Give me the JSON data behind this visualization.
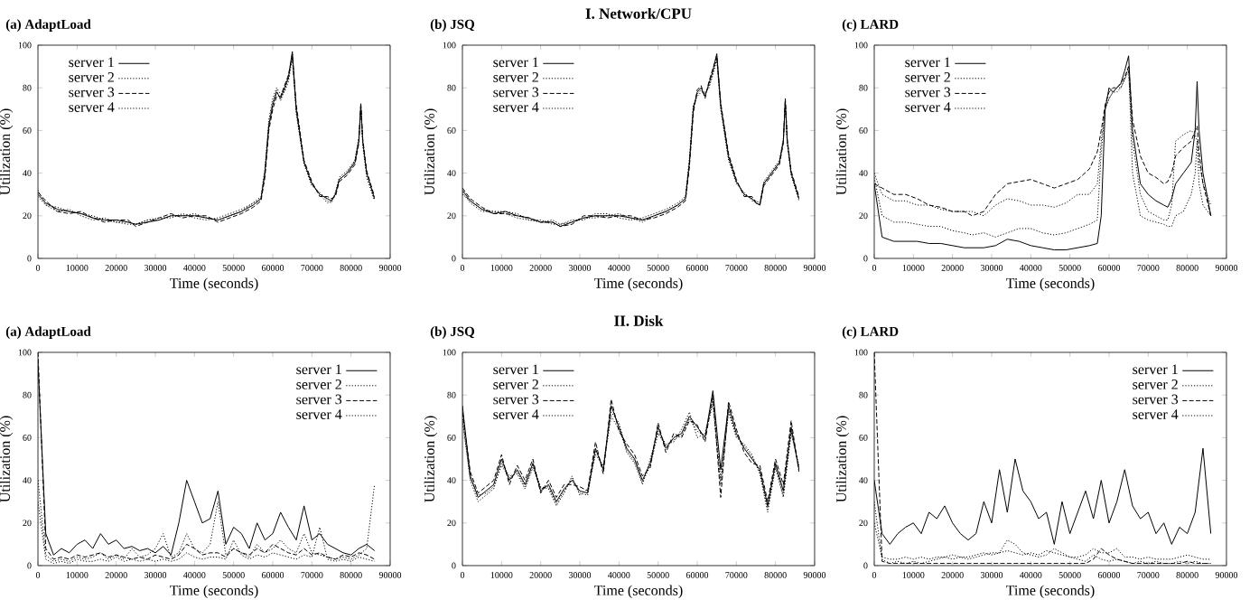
{
  "chart_data": [
    {
      "type": "line",
      "title": "(a) AdaptLoad",
      "xlabel": "Time (seconds)",
      "ylabel": "Utilization (%)",
      "xlim": [
        0,
        90000
      ],
      "ylim": [
        0,
        100
      ],
      "xticks": [
        0,
        10000,
        20000,
        30000,
        40000,
        50000,
        60000,
        70000,
        80000,
        90000
      ],
      "yticks": [
        0,
        20,
        40,
        60,
        80,
        100
      ],
      "legend": "top left",
      "marker": "none",
      "x": [
        0,
        2000,
        5000,
        8000,
        11000,
        14000,
        17000,
        20000,
        23000,
        25000,
        28000,
        31000,
        34000,
        37000,
        40000,
        43000,
        46000,
        49000,
        52000,
        55000,
        57000,
        58000,
        59000,
        60000,
        61000,
        62000,
        63000,
        64000,
        65000,
        66000,
        68000,
        70000,
        72000,
        74000,
        75000,
        76000,
        77000,
        79000,
        81000,
        82000,
        82500,
        83000,
        84000,
        86000
      ],
      "series": [
        {
          "name": "server 1",
          "color": "#000000",
          "line_style": "solid",
          "values": [
            30,
            26,
            23,
            22,
            21,
            19,
            18,
            18,
            17,
            16,
            17,
            18,
            20,
            20,
            20,
            19,
            18,
            20,
            22,
            25,
            28,
            40,
            62,
            72,
            78,
            75,
            80,
            85,
            97,
            70,
            45,
            35,
            30,
            28,
            27,
            30,
            37,
            40,
            45,
            55,
            72,
            55,
            40,
            28
          ]
        },
        {
          "name": "server 2",
          "color": "#000000",
          "line_style": "dotted",
          "values": [
            29,
            25,
            22,
            23,
            20,
            18,
            19,
            17,
            16,
            16,
            18,
            19,
            19,
            21,
            19,
            18,
            19,
            21,
            23,
            26,
            29,
            42,
            65,
            75,
            80,
            77,
            78,
            83,
            94,
            68,
            44,
            34,
            31,
            27,
            26,
            31,
            38,
            41,
            46,
            57,
            70,
            53,
            38,
            27
          ]
        },
        {
          "name": "server 3",
          "color": "#000000",
          "line_style": "dashed",
          "values": [
            31,
            27,
            22,
            21,
            22,
            19,
            17,
            18,
            18,
            15,
            17,
            19,
            21,
            19,
            20,
            20,
            17,
            19,
            21,
            24,
            27,
            38,
            60,
            70,
            76,
            76,
            81,
            86,
            95,
            72,
            46,
            36,
            29,
            29,
            28,
            29,
            36,
            39,
            44,
            54,
            73,
            56,
            41,
            29
          ]
        },
        {
          "name": "server 4",
          "color": "#000000",
          "line_style": "dotted",
          "values": [
            32,
            25,
            24,
            22,
            21,
            20,
            18,
            17,
            17,
            16,
            18,
            18,
            20,
            20,
            21,
            19,
            18,
            20,
            22,
            26,
            28,
            41,
            63,
            73,
            79,
            74,
            79,
            84,
            96,
            69,
            45,
            35,
            30,
            26,
            27,
            30,
            37,
            40,
            46,
            56,
            71,
            54,
            40,
            28
          ]
        }
      ]
    },
    {
      "type": "line",
      "title": "(b) JSQ",
      "annotations": [
        "I. Network/CPU"
      ],
      "xlabel": "Time (seconds)",
      "ylabel": "Utilization (%)",
      "xlim": [
        0,
        90000
      ],
      "ylim": [
        0,
        100
      ],
      "xticks": [
        0,
        10000,
        20000,
        30000,
        40000,
        50000,
        60000,
        70000,
        80000,
        90000
      ],
      "yticks": [
        0,
        20,
        40,
        60,
        80,
        100
      ],
      "legend": "top left",
      "marker": "none",
      "x": [
        0,
        2000,
        5000,
        8000,
        11000,
        14000,
        17000,
        20000,
        23000,
        25000,
        28000,
        31000,
        34000,
        37000,
        40000,
        43000,
        46000,
        49000,
        52000,
        55000,
        57000,
        58000,
        59000,
        60000,
        61000,
        62000,
        63000,
        64000,
        65000,
        66000,
        68000,
        70000,
        72000,
        74000,
        75000,
        76000,
        77000,
        79000,
        81000,
        82000,
        82500,
        83000,
        84000,
        86000
      ],
      "series": [
        {
          "name": "server 1",
          "color": "#000000",
          "line_style": "solid",
          "values": [
            32,
            27,
            23,
            21,
            22,
            20,
            19,
            17,
            17,
            15,
            17,
            19,
            20,
            20,
            20,
            19,
            18,
            20,
            22,
            25,
            28,
            45,
            70,
            78,
            80,
            76,
            82,
            88,
            96,
            72,
            48,
            36,
            30,
            28,
            26,
            25,
            35,
            40,
            45,
            55,
            74,
            55,
            40,
            28
          ]
        },
        {
          "name": "server 2",
          "color": "#000000",
          "line_style": "dotted",
          "values": [
            31,
            26,
            22,
            22,
            21,
            19,
            18,
            18,
            16,
            16,
            18,
            18,
            21,
            21,
            19,
            18,
            19,
            21,
            23,
            26,
            29,
            47,
            72,
            76,
            78,
            78,
            80,
            86,
            94,
            70,
            46,
            35,
            31,
            27,
            27,
            26,
            36,
            41,
            46,
            56,
            72,
            54,
            39,
            27
          ]
        },
        {
          "name": "server 3",
          "color": "#000000",
          "line_style": "dashed",
          "values": [
            33,
            28,
            24,
            21,
            21,
            20,
            19,
            17,
            17,
            15,
            16,
            20,
            20,
            19,
            20,
            20,
            18,
            19,
            21,
            24,
            27,
            43,
            68,
            79,
            81,
            75,
            83,
            89,
            95,
            73,
            49,
            37,
            29,
            29,
            26,
            25,
            34,
            39,
            44,
            54,
            75,
            56,
            41,
            29
          ]
        },
        {
          "name": "server 4",
          "color": "#000000",
          "line_style": "dotted",
          "values": [
            30,
            27,
            23,
            22,
            22,
            21,
            18,
            17,
            18,
            16,
            17,
            19,
            19,
            20,
            21,
            19,
            17,
            20,
            22,
            25,
            28,
            44,
            71,
            77,
            79,
            77,
            81,
            87,
            93,
            71,
            47,
            36,
            30,
            28,
            27,
            25,
            35,
            40,
            45,
            55,
            73,
            55,
            40,
            28
          ]
        }
      ]
    },
    {
      "type": "line",
      "title": "(c) LARD",
      "xlabel": "Time (seconds)",
      "ylabel": "Utilization (%)",
      "xlim": [
        0,
        90000
      ],
      "ylim": [
        0,
        100
      ],
      "xticks": [
        0,
        10000,
        20000,
        30000,
        40000,
        50000,
        60000,
        70000,
        80000,
        90000
      ],
      "yticks": [
        0,
        20,
        40,
        60,
        80,
        100
      ],
      "legend": "top left",
      "marker": "none",
      "x": [
        0,
        2000,
        5000,
        8000,
        11000,
        14000,
        17000,
        20000,
        23000,
        25000,
        28000,
        31000,
        34000,
        37000,
        40000,
        43000,
        46000,
        49000,
        52000,
        55000,
        57000,
        58000,
        59000,
        60000,
        61000,
        62000,
        63000,
        64000,
        65000,
        66000,
        68000,
        70000,
        72000,
        74000,
        75000,
        76000,
        77000,
        79000,
        81000,
        82000,
        82500,
        83000,
        84000,
        86000
      ],
      "series": [
        {
          "name": "server 1",
          "color": "#000000",
          "line_style": "solid",
          "values": [
            35,
            10,
            8,
            8,
            8,
            7,
            7,
            6,
            5,
            5,
            5,
            6,
            9,
            8,
            6,
            5,
            4,
            4,
            5,
            6,
            7,
            20,
            70,
            80,
            78,
            80,
            82,
            88,
            95,
            60,
            35,
            30,
            27,
            25,
            24,
            28,
            35,
            40,
            45,
            60,
            83,
            60,
            40,
            20
          ]
        },
        {
          "name": "server 2",
          "color": "#000000",
          "line_style": "dotted",
          "values": [
            40,
            30,
            27,
            27,
            25,
            25,
            23,
            22,
            22,
            22,
            20,
            25,
            28,
            27,
            25,
            25,
            24,
            26,
            30,
            30,
            35,
            55,
            70,
            75,
            78,
            78,
            80,
            84,
            88,
            55,
            30,
            22,
            20,
            18,
            18,
            25,
            55,
            58,
            60,
            58,
            55,
            45,
            35,
            25
          ]
        },
        {
          "name": "server 3",
          "color": "#000000",
          "line_style": "dashed",
          "values": [
            35,
            33,
            30,
            30,
            28,
            25,
            24,
            22,
            22,
            20,
            22,
            30,
            35,
            36,
            37,
            35,
            33,
            35,
            37,
            42,
            50,
            60,
            72,
            78,
            80,
            80,
            82,
            85,
            90,
            65,
            48,
            40,
            38,
            35,
            36,
            40,
            48,
            52,
            55,
            60,
            62,
            50,
            35,
            20
          ]
        },
        {
          "name": "server 4",
          "color": "#000000",
          "line_style": "dotted",
          "values": [
            38,
            20,
            17,
            17,
            16,
            15,
            15,
            13,
            12,
            11,
            12,
            10,
            12,
            14,
            14,
            12,
            11,
            12,
            14,
            16,
            18,
            50,
            70,
            75,
            78,
            80,
            80,
            84,
            90,
            40,
            20,
            18,
            17,
            16,
            15,
            15,
            20,
            22,
            30,
            40,
            55,
            35,
            25,
            20
          ]
        }
      ]
    },
    {
      "type": "line",
      "title": "(a) AdaptLoad",
      "xlabel": "Time (seconds)",
      "ylabel": "Utilization (%)",
      "xlim": [
        0,
        90000
      ],
      "ylim": [
        0,
        100
      ],
      "xticks": [
        0,
        10000,
        20000,
        30000,
        40000,
        50000,
        60000,
        70000,
        80000,
        90000
      ],
      "yticks": [
        0,
        20,
        40,
        60,
        80,
        100
      ],
      "legend": "top right",
      "marker": "none",
      "x": [
        0,
        2000,
        4000,
        6000,
        8000,
        10000,
        12000,
        14000,
        16000,
        18000,
        20000,
        22000,
        24000,
        26000,
        28000,
        30000,
        32000,
        34000,
        36000,
        38000,
        40000,
        42000,
        44000,
        46000,
        48000,
        50000,
        52000,
        54000,
        56000,
        58000,
        60000,
        62000,
        64000,
        66000,
        68000,
        70000,
        72000,
        74000,
        76000,
        78000,
        80000,
        82000,
        84000,
        86000
      ],
      "series": [
        {
          "name": "server 1",
          "color": "#000000",
          "line_style": "solid",
          "values": [
            95,
            15,
            5,
            8,
            6,
            10,
            12,
            8,
            15,
            10,
            12,
            8,
            9,
            7,
            8,
            6,
            9,
            5,
            20,
            40,
            30,
            20,
            22,
            35,
            10,
            18,
            15,
            8,
            20,
            12,
            15,
            25,
            18,
            12,
            28,
            12,
            15,
            10,
            8,
            6,
            5,
            8,
            10,
            7
          ]
        },
        {
          "name": "server 2",
          "color": "#000000",
          "line_style": "dotted",
          "values": [
            40,
            5,
            2,
            3,
            2,
            4,
            3,
            4,
            6,
            3,
            5,
            3,
            8,
            4,
            5,
            8,
            15,
            4,
            6,
            15,
            8,
            6,
            10,
            30,
            5,
            8,
            6,
            4,
            10,
            6,
            8,
            12,
            8,
            6,
            15,
            6,
            5,
            4,
            3,
            4,
            3,
            5,
            8,
            38
          ]
        },
        {
          "name": "server 3",
          "color": "#000000",
          "line_style": "dashed",
          "values": [
            100,
            8,
            3,
            4,
            3,
            5,
            4,
            5,
            6,
            4,
            5,
            4,
            3,
            4,
            3,
            5,
            4,
            3,
            5,
            10,
            8,
            5,
            6,
            6,
            4,
            8,
            6,
            5,
            8,
            6,
            10,
            8,
            6,
            5,
            8,
            5,
            6,
            4,
            3,
            5,
            4,
            6,
            5,
            3
          ]
        },
        {
          "name": "server 4",
          "color": "#000000",
          "line_style": "dotted",
          "values": [
            30,
            3,
            1,
            2,
            1,
            3,
            2,
            2,
            3,
            2,
            4,
            2,
            3,
            2,
            3,
            2,
            3,
            2,
            3,
            6,
            4,
            3,
            4,
            4,
            3,
            12,
            5,
            3,
            5,
            4,
            6,
            5,
            4,
            3,
            5,
            4,
            18,
            3,
            2,
            3,
            2,
            4,
            3,
            2
          ]
        }
      ]
    },
    {
      "type": "line",
      "title": "(b) JSQ",
      "annotations": [
        "II. Disk"
      ],
      "xlabel": "Time (seconds)",
      "ylabel": "Utilization (%)",
      "xlim": [
        0,
        90000
      ],
      "ylim": [
        0,
        100
      ],
      "xticks": [
        0,
        10000,
        20000,
        30000,
        40000,
        50000,
        60000,
        70000,
        80000,
        90000
      ],
      "yticks": [
        0,
        20,
        40,
        60,
        80,
        100
      ],
      "legend": "top left",
      "marker": "none",
      "x": [
        0,
        2000,
        4000,
        6000,
        8000,
        10000,
        12000,
        14000,
        16000,
        18000,
        20000,
        22000,
        24000,
        26000,
        28000,
        30000,
        32000,
        34000,
        36000,
        38000,
        40000,
        42000,
        44000,
        46000,
        48000,
        50000,
        52000,
        54000,
        56000,
        58000,
        60000,
        62000,
        64000,
        66000,
        68000,
        70000,
        72000,
        74000,
        76000,
        78000,
        80000,
        82000,
        84000,
        86000
      ],
      "series": [
        {
          "name": "server 1",
          "color": "#000000",
          "line_style": "solid",
          "values": [
            75,
            42,
            32,
            35,
            38,
            50,
            40,
            45,
            38,
            48,
            35,
            38,
            30,
            36,
            40,
            35,
            34,
            55,
            45,
            75,
            65,
            55,
            50,
            40,
            48,
            65,
            55,
            60,
            62,
            70,
            65,
            60,
            82,
            45,
            75,
            62,
            55,
            50,
            45,
            28,
            48,
            35,
            65,
            45
          ]
        },
        {
          "name": "server 2",
          "color": "#000000",
          "line_style": "dotted",
          "values": [
            70,
            40,
            30,
            33,
            36,
            48,
            42,
            43,
            36,
            46,
            37,
            36,
            28,
            34,
            42,
            33,
            36,
            52,
            47,
            72,
            67,
            53,
            48,
            38,
            50,
            63,
            57,
            58,
            64,
            72,
            60,
            62,
            78,
            40,
            72,
            60,
            57,
            52,
            43,
            25,
            46,
            32,
            62,
            47
          ]
        },
        {
          "name": "server 3",
          "color": "#000000",
          "line_style": "dashed",
          "values": [
            72,
            44,
            34,
            37,
            40,
            52,
            38,
            47,
            40,
            50,
            34,
            40,
            32,
            38,
            38,
            37,
            35,
            58,
            43,
            78,
            63,
            57,
            52,
            42,
            46,
            67,
            53,
            62,
            60,
            68,
            66,
            58,
            80,
            32,
            77,
            64,
            53,
            48,
            47,
            30,
            50,
            38,
            68,
            44
          ]
        },
        {
          "name": "server 4",
          "color": "#000000",
          "line_style": "dotted",
          "values": [
            68,
            41,
            33,
            34,
            37,
            47,
            41,
            44,
            37,
            47,
            36,
            37,
            29,
            35,
            41,
            34,
            33,
            54,
            46,
            70,
            64,
            54,
            49,
            39,
            47,
            62,
            56,
            59,
            61,
            69,
            63,
            61,
            76,
            38,
            73,
            61,
            56,
            51,
            44,
            27,
            47,
            33,
            63,
            46
          ]
        }
      ]
    },
    {
      "type": "line",
      "title": "(c) LARD",
      "xlabel": "Time (seconds)",
      "ylabel": "Utilization (%)",
      "xlim": [
        0,
        90000
      ],
      "ylim": [
        0,
        100
      ],
      "xticks": [
        0,
        10000,
        20000,
        30000,
        40000,
        50000,
        60000,
        70000,
        80000,
        90000
      ],
      "yticks": [
        0,
        20,
        40,
        60,
        80,
        100
      ],
      "legend": "top right",
      "marker": "none",
      "x": [
        0,
        2000,
        4000,
        6000,
        8000,
        10000,
        12000,
        14000,
        16000,
        18000,
        20000,
        22000,
        24000,
        26000,
        28000,
        30000,
        32000,
        34000,
        36000,
        38000,
        40000,
        42000,
        44000,
        46000,
        48000,
        50000,
        52000,
        54000,
        56000,
        58000,
        60000,
        62000,
        64000,
        66000,
        68000,
        70000,
        72000,
        74000,
        76000,
        78000,
        80000,
        82000,
        84000,
        86000
      ],
      "series": [
        {
          "name": "server 1",
          "color": "#000000",
          "line_style": "solid",
          "values": [
            40,
            15,
            10,
            15,
            18,
            20,
            15,
            25,
            22,
            28,
            20,
            15,
            12,
            15,
            30,
            20,
            45,
            25,
            50,
            35,
            30,
            22,
            25,
            10,
            30,
            15,
            25,
            35,
            22,
            40,
            20,
            30,
            45,
            28,
            22,
            25,
            15,
            20,
            10,
            18,
            15,
            25,
            55,
            15
          ]
        },
        {
          "name": "server 2",
          "color": "#000000",
          "line_style": "dotted",
          "values": [
            30,
            3,
            1,
            2,
            1,
            2,
            1,
            2,
            3,
            4,
            3,
            4,
            3,
            4,
            5,
            6,
            6,
            12,
            10,
            6,
            5,
            4,
            5,
            8,
            6,
            4,
            3,
            2,
            5,
            3,
            2,
            3,
            2,
            1,
            2,
            1,
            2,
            1,
            1,
            2,
            1,
            2,
            1,
            1
          ]
        },
        {
          "name": "server 3",
          "color": "#000000",
          "line_style": "dashed",
          "values": [
            100,
            2,
            1,
            1,
            1,
            1,
            1,
            1,
            1,
            1,
            1,
            1,
            1,
            1,
            1,
            1,
            1,
            1,
            1,
            1,
            1,
            1,
            1,
            1,
            1,
            1,
            1,
            1,
            3,
            8,
            5,
            3,
            2,
            1,
            1,
            1,
            1,
            1,
            1,
            1,
            2,
            1,
            1,
            1
          ]
        },
        {
          "name": "server 4",
          "color": "#000000",
          "line_style": "dotted",
          "values": [
            20,
            4,
            3,
            3,
            4,
            3,
            4,
            3,
            4,
            4,
            5,
            4,
            4,
            5,
            6,
            5,
            6,
            7,
            6,
            5,
            6,
            5,
            7,
            6,
            5,
            4,
            4,
            5,
            8,
            6,
            6,
            8,
            4,
            4,
            3,
            4,
            3,
            3,
            3,
            4,
            5,
            4,
            3,
            3
          ]
        }
      ]
    }
  ]
}
